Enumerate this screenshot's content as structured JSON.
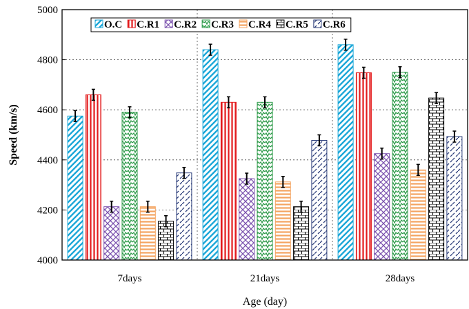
{
  "chart_data": {
    "type": "bar",
    "xlabel": "Age (day)",
    "ylabel": "Speed (km/s)",
    "ylim": [
      4000,
      5000
    ],
    "yticks": [
      "4000",
      "4200",
      "4400",
      "4600",
      "4800",
      "5000"
    ],
    "categories": [
      "7days",
      "21days",
      "28days"
    ],
    "grid": "dotted vertical and horizontal",
    "legend_position": "top",
    "series": [
      {
        "name": "O.C",
        "values": [
          4575,
          4840,
          4860
        ],
        "errors": [
          22,
          22,
          22
        ],
        "color": "#1ba7d8",
        "pattern": "diag-up"
      },
      {
        "name": "C.R1",
        "values": [
          4660,
          4630,
          4748
        ],
        "errors": [
          22,
          22,
          22
        ],
        "color": "#e31a1c",
        "pattern": "vertical"
      },
      {
        "name": "C.R2",
        "values": [
          4213,
          4325,
          4425
        ],
        "errors": [
          22,
          22,
          22
        ],
        "color": "#7b52ae",
        "pattern": "crosshatch"
      },
      {
        "name": "C.R3",
        "values": [
          4590,
          4630,
          4750
        ],
        "errors": [
          22,
          22,
          22
        ],
        "color": "#2e9b4a",
        "pattern": "zigzag"
      },
      {
        "name": "C.R4",
        "values": [
          4213,
          4312,
          4360
        ],
        "errors": [
          22,
          22,
          22
        ],
        "color": "#f4a460",
        "pattern": "horizontal"
      },
      {
        "name": "C.R5",
        "values": [
          4155,
          4213,
          4647
        ],
        "errors": [
          22,
          22,
          22
        ],
        "color": "#000000",
        "pattern": "brick"
      },
      {
        "name": "C.R6",
        "values": [
          4348,
          4478,
          4493
        ],
        "errors": [
          22,
          22,
          22
        ],
        "color": "#2c3e7a",
        "pattern": "dashed-diag"
      }
    ]
  }
}
